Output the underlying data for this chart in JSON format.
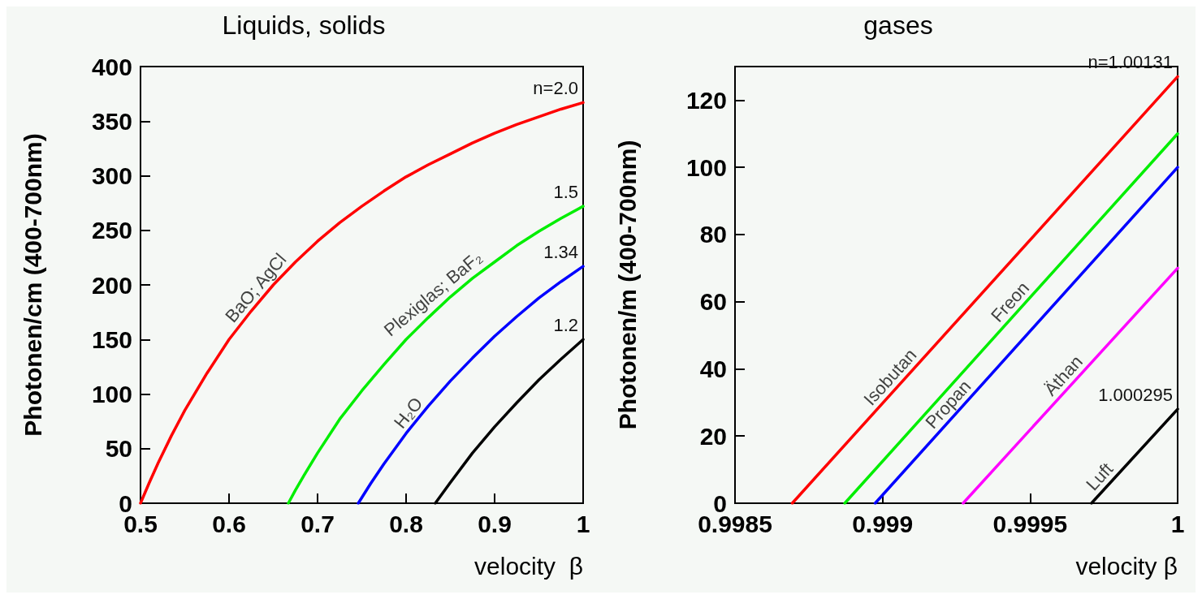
{
  "chart_data": [
    {
      "type": "line",
      "title": "Liquids, solids",
      "xlabel": "velocity  β",
      "ylabel": "Photonen/cm (400-700nm)",
      "xlim": [
        0.5,
        1
      ],
      "xticks": [
        0.5,
        0.6,
        0.7,
        0.8,
        0.9,
        1
      ],
      "ylim": [
        0,
        400
      ],
      "yticks": [
        0,
        50,
        100,
        150,
        200,
        250,
        300,
        350,
        400
      ],
      "grid": false,
      "legend": false,
      "marker": "none",
      "line_style": "solid",
      "series": [
        {
          "name": "n=2.0",
          "color": "#ff0000",
          "x": [
            0.5,
            0.51,
            0.52,
            0.535,
            0.55,
            0.575,
            0.6,
            0.625,
            0.65,
            0.675,
            0.7,
            0.725,
            0.75,
            0.775,
            0.8,
            0.825,
            0.85,
            0.875,
            0.9,
            0.925,
            0.95,
            0.975,
            1
          ],
          "values": [
            0,
            19,
            37,
            62,
            85,
            119,
            150,
            176,
            200,
            221,
            240,
            257,
            272,
            286,
            299,
            310,
            320,
            330,
            339,
            347,
            354,
            361,
            367
          ]
        },
        {
          "name": "1.5",
          "color": "#00ee00",
          "x": [
            0.667,
            0.675,
            0.685,
            0.7,
            0.725,
            0.75,
            0.775,
            0.8,
            0.825,
            0.85,
            0.875,
            0.9,
            0.925,
            0.95,
            0.975,
            1
          ],
          "values": [
            0,
            12,
            26,
            46,
            77,
            103,
            127,
            150,
            170,
            189,
            206,
            221,
            236,
            249,
            261,
            272
          ]
        },
        {
          "name": "1.34",
          "color": "#0000ff",
          "x": [
            0.746,
            0.76,
            0.775,
            0.8,
            0.825,
            0.85,
            0.875,
            0.9,
            0.925,
            0.95,
            0.975,
            1
          ],
          "values": [
            0,
            18,
            36,
            64,
            89,
            112,
            133,
            153,
            171,
            188,
            203,
            217
          ]
        },
        {
          "name": "1.2",
          "color": "#000000",
          "x": [
            0.833,
            0.85,
            0.875,
            0.9,
            0.925,
            0.95,
            0.975,
            1
          ],
          "values": [
            0,
            19,
            46,
            70,
            92,
            113,
            132,
            150
          ]
        }
      ],
      "annotations": [
        "BaO; AgCl",
        "Plexiglas; BaF₂",
        "H₂O"
      ]
    },
    {
      "type": "line",
      "title": "gases",
      "xlabel": "velocity β",
      "ylabel": "Photonen/m (400-700nm)",
      "xlim": [
        0.9985,
        1
      ],
      "xticks": [
        0.9985,
        0.999,
        0.9995,
        1
      ],
      "ylim": [
        0,
        130
      ],
      "yticks": [
        0,
        20,
        40,
        60,
        80,
        100,
        120
      ],
      "grid": false,
      "legend": false,
      "marker": "none",
      "line_style": "solid",
      "series": [
        {
          "name": "n=1.00131",
          "color": "#ff0000",
          "x": [
            0.998694,
            1
          ],
          "values": [
            0,
            127
          ]
        },
        {
          "color": "#00ee00",
          "x": [
            0.998872,
            1
          ],
          "values": [
            0,
            110
          ]
        },
        {
          "color": "#0000ff",
          "x": [
            0.998975,
            1
          ],
          "values": [
            0,
            100
          ]
        },
        {
          "color": "#ff00ff",
          "x": [
            0.999273,
            1
          ],
          "values": [
            0,
            70
          ]
        },
        {
          "name": "1.000295",
          "color": "#000000",
          "x": [
            0.999708,
            1
          ],
          "values": [
            0,
            28
          ]
        }
      ],
      "annotations": [
        "Isobutan",
        "Freon",
        "Propan",
        "Äthan",
        "Luft"
      ]
    }
  ]
}
